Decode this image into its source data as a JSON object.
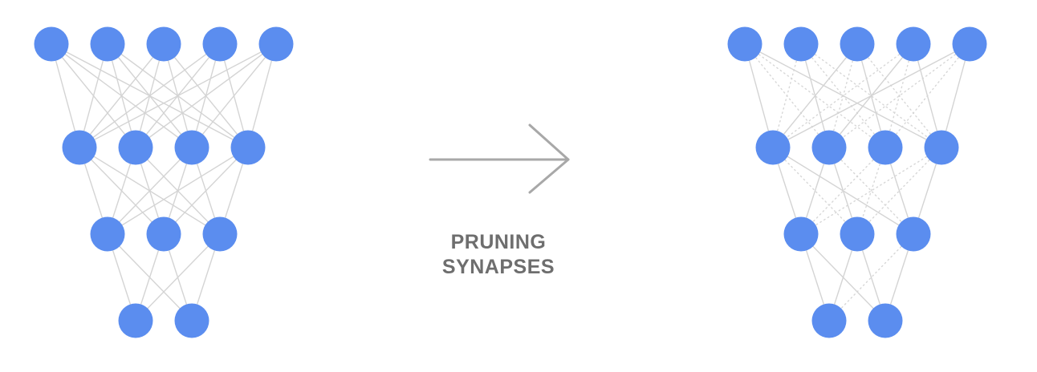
{
  "caption": {
    "line1": "PRUNING",
    "line2": "SYNAPSES"
  },
  "colors": {
    "node": "#5b8def",
    "edge": "#d4d4d4",
    "edge_pruned": "#d7d7d7",
    "arrow": "#a8a8a8",
    "caption": "#6e6e6e"
  },
  "networks": {
    "before": {
      "layer_sizes": [
        5,
        4,
        3,
        2
      ],
      "connectivity": "fully-connected"
    },
    "after": {
      "layer_sizes": [
        5,
        4,
        3,
        2
      ],
      "connectivity": "pruned",
      "kept_edges": [
        [
          [
            0,
            0
          ],
          [
            0,
            3
          ],
          [
            1,
            1
          ],
          [
            2,
            0
          ],
          [
            2,
            2
          ],
          [
            3,
            1
          ],
          [
            3,
            3
          ],
          [
            4,
            0
          ],
          [
            4,
            3
          ]
        ],
        [
          [
            0,
            0
          ],
          [
            0,
            2
          ],
          [
            1,
            0
          ],
          [
            1,
            1
          ],
          [
            2,
            2
          ],
          [
            3,
            2
          ]
        ],
        [
          [
            0,
            0
          ],
          [
            0,
            1
          ],
          [
            1,
            0
          ],
          [
            1,
            1
          ],
          [
            2,
            1
          ]
        ]
      ]
    }
  },
  "icons": {
    "arrow": "right-arrow-icon"
  }
}
